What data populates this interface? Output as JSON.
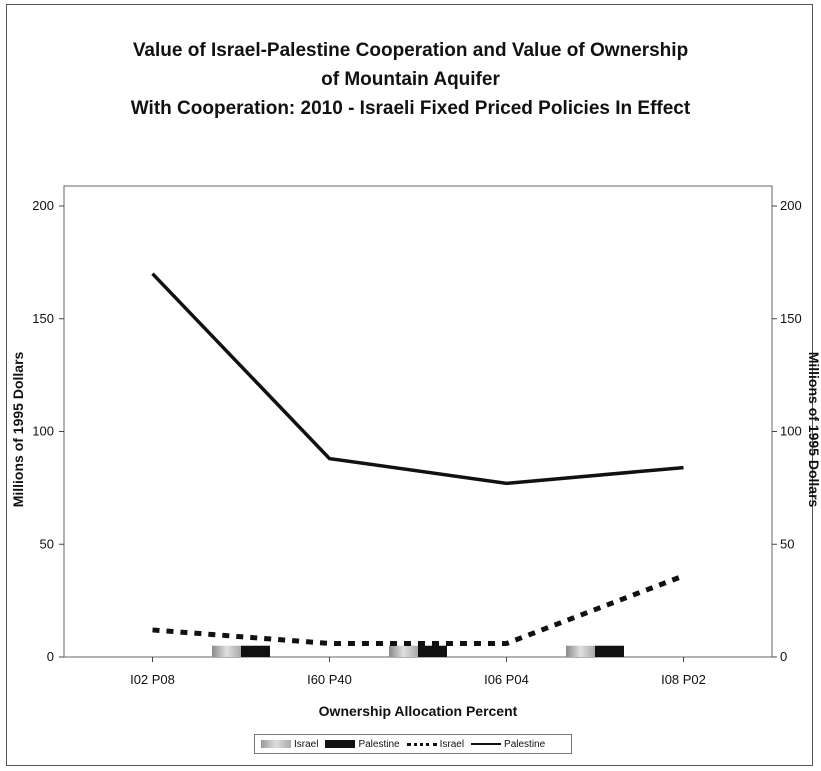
{
  "chart_data": {
    "type": "bar",
    "title_lines": [
      "Value of Israel-Palestine Cooperation and Value of Ownership",
      "of Mountain Aquifer",
      "With Cooperation:  2010 - Israeli Fixed Priced Policies In Effect"
    ],
    "xlabel": "Ownership Allocation Percent",
    "ylabel_left": "Millions of 1995 Dollars",
    "ylabel_right": "Millions of 1995 Dollars",
    "categories": [
      "I02 P08",
      "I60 P40",
      "I06 P04",
      "I08 P02"
    ],
    "ylim": [
      0,
      200
    ],
    "y_ticks": [
      "0",
      "50",
      "100",
      "150",
      "200"
    ],
    "bars": {
      "positions": [
        0.5,
        1.5,
        2.5
      ],
      "series": [
        {
          "name": "Israel",
          "values": [
            5,
            5,
            5
          ],
          "color": "#bbbbbb"
        },
        {
          "name": "Palestine",
          "values": [
            5,
            5,
            5
          ],
          "color": "#111111"
        }
      ]
    },
    "lines": [
      {
        "name": "Israel",
        "style": "dotted",
        "values": [
          12,
          6,
          6,
          36
        ],
        "color": "#111111"
      },
      {
        "name": "Palestine",
        "style": "solid",
        "values": [
          170,
          88,
          77,
          84
        ],
        "color": "#111111"
      }
    ],
    "grid": false,
    "legend_position": "bottom",
    "legend_labels": [
      "Israel",
      "Palestine",
      "Israel",
      "Palestine"
    ]
  }
}
